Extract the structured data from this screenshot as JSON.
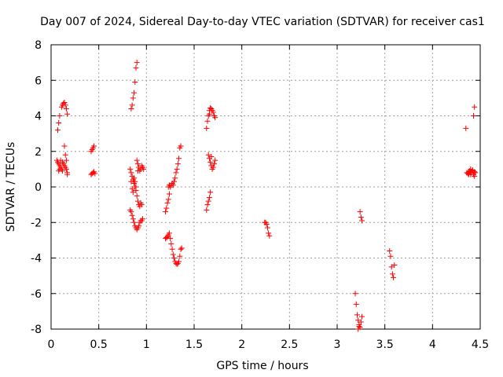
{
  "chart_data": {
    "type": "scatter",
    "title": "Day 007 of 2024, Sidereal Day-to-day VTEC variation (SDTVAR) for receiver cas1",
    "xlabel": "GPS time / hours",
    "ylabel": "SDTVAR / TECUs",
    "xlim": [
      0,
      4.5
    ],
    "ylim": [
      -8,
      8
    ],
    "xticks": [
      0,
      0.5,
      1,
      1.5,
      2,
      2.5,
      3,
      3.5,
      4,
      4.5
    ],
    "xtick_labels": [
      "0",
      "0.5",
      "1",
      "1.5",
      "2",
      "2.5",
      "3",
      "3.5",
      "4",
      "4.5"
    ],
    "yticks": [
      -8,
      -6,
      -4,
      -2,
      0,
      2,
      4,
      6,
      8
    ],
    "ytick_labels": [
      "-8",
      "-6",
      "-4",
      "-2",
      "0",
      "2",
      "4",
      "6",
      "8"
    ],
    "grid": true,
    "marker": "+",
    "color": "#ff0000",
    "series": [
      {
        "name": "SDTVAR",
        "points": [
          [
            0.07,
            3.2
          ],
          [
            0.08,
            3.6
          ],
          [
            0.09,
            4.0
          ],
          [
            0.11,
            4.5
          ],
          [
            0.12,
            4.6
          ],
          [
            0.13,
            4.7
          ],
          [
            0.14,
            4.75
          ],
          [
            0.15,
            4.6
          ],
          [
            0.16,
            4.4
          ],
          [
            0.17,
            4.1
          ],
          [
            0.06,
            1.5
          ],
          [
            0.07,
            1.4
          ],
          [
            0.08,
            1.3
          ],
          [
            0.09,
            1.2
          ],
          [
            0.1,
            1.1
          ],
          [
            0.11,
            1.0
          ],
          [
            0.12,
            0.9
          ],
          [
            0.13,
            1.3
          ],
          [
            0.14,
            1.2
          ],
          [
            0.15,
            1.1
          ],
          [
            0.16,
            1.0
          ],
          [
            0.17,
            0.8
          ],
          [
            0.08,
            0.9
          ],
          [
            0.1,
            1.5
          ],
          [
            0.12,
            1.4
          ],
          [
            0.14,
            2.3
          ],
          [
            0.15,
            1.8
          ],
          [
            0.16,
            1.5
          ],
          [
            0.17,
            0.7
          ],
          [
            0.09,
            1.0
          ],
          [
            0.42,
            2.0
          ],
          [
            0.43,
            2.1
          ],
          [
            0.44,
            2.2
          ],
          [
            0.45,
            2.3
          ],
          [
            0.42,
            0.7
          ],
          [
            0.43,
            0.75
          ],
          [
            0.44,
            0.8
          ],
          [
            0.45,
            0.85
          ],
          [
            0.46,
            0.75
          ],
          [
            0.84,
            4.4
          ],
          [
            0.85,
            4.6
          ],
          [
            0.86,
            5.0
          ],
          [
            0.87,
            5.3
          ],
          [
            0.88,
            5.9
          ],
          [
            0.89,
            6.7
          ],
          [
            0.9,
            7.0
          ],
          [
            0.83,
            1.0
          ],
          [
            0.84,
            0.8
          ],
          [
            0.85,
            0.6
          ],
          [
            0.86,
            0.4
          ],
          [
            0.87,
            0.2
          ],
          [
            0.88,
            0.0
          ],
          [
            0.89,
            -0.2
          ],
          [
            0.84,
            0.3
          ],
          [
            0.85,
            -0.1
          ],
          [
            0.86,
            -0.3
          ],
          [
            0.87,
            0.5
          ],
          [
            0.88,
            0.3
          ],
          [
            0.89,
            0.0
          ],
          [
            0.9,
            -0.5
          ],
          [
            0.91,
            -0.8
          ],
          [
            0.92,
            -1.0
          ],
          [
            0.93,
            -1.1
          ],
          [
            0.94,
            -0.9
          ],
          [
            0.95,
            -1.0
          ],
          [
            0.9,
            1.5
          ],
          [
            0.91,
            1.3
          ],
          [
            0.92,
            1.1
          ],
          [
            0.93,
            0.9
          ],
          [
            0.94,
            1.0
          ],
          [
            0.95,
            1.2
          ],
          [
            0.96,
            1.1
          ],
          [
            0.97,
            1.0
          ],
          [
            0.91,
            0.9
          ],
          [
            0.83,
            -1.3
          ],
          [
            0.84,
            -1.4
          ],
          [
            0.85,
            -1.6
          ],
          [
            0.86,
            -1.8
          ],
          [
            0.87,
            -2.0
          ],
          [
            0.88,
            -2.2
          ],
          [
            0.89,
            -2.3
          ],
          [
            0.9,
            -2.4
          ],
          [
            0.91,
            -2.3
          ],
          [
            0.92,
            -2.2
          ],
          [
            0.93,
            -2.0
          ],
          [
            0.94,
            -1.9
          ],
          [
            0.95,
            -1.9
          ],
          [
            0.96,
            -1.8
          ],
          [
            1.2,
            -1.4
          ],
          [
            1.21,
            -1.2
          ],
          [
            1.22,
            -0.9
          ],
          [
            1.23,
            -0.7
          ],
          [
            1.24,
            -0.4
          ],
          [
            1.23,
            0.0
          ],
          [
            1.24,
            0.1
          ],
          [
            1.25,
            0.0
          ],
          [
            1.26,
            0.1
          ],
          [
            1.27,
            0.2
          ],
          [
            1.28,
            0.1
          ],
          [
            1.29,
            0.3
          ],
          [
            1.3,
            0.5
          ],
          [
            1.31,
            0.8
          ],
          [
            1.32,
            1.0
          ],
          [
            1.33,
            1.3
          ],
          [
            1.34,
            1.6
          ],
          [
            1.35,
            2.2
          ],
          [
            1.36,
            2.3
          ],
          [
            1.2,
            -2.9
          ],
          [
            1.21,
            -2.85
          ],
          [
            1.22,
            -2.8
          ],
          [
            1.23,
            -2.7
          ],
          [
            1.24,
            -2.6
          ],
          [
            1.25,
            -2.9
          ],
          [
            1.26,
            -3.2
          ],
          [
            1.27,
            -3.5
          ],
          [
            1.28,
            -3.8
          ],
          [
            1.29,
            -4.0
          ],
          [
            1.3,
            -4.2
          ],
          [
            1.31,
            -4.3
          ],
          [
            1.32,
            -4.35
          ],
          [
            1.33,
            -4.3
          ],
          [
            1.34,
            -4.2
          ],
          [
            1.35,
            -3.9
          ],
          [
            1.36,
            -3.5
          ],
          [
            1.37,
            -3.45
          ],
          [
            1.63,
            3.3
          ],
          [
            1.64,
            3.7
          ],
          [
            1.65,
            4.0
          ],
          [
            1.66,
            4.3
          ],
          [
            1.67,
            4.45
          ],
          [
            1.68,
            4.4
          ],
          [
            1.69,
            4.3
          ],
          [
            1.7,
            4.2
          ],
          [
            1.71,
            4.0
          ],
          [
            1.72,
            3.9
          ],
          [
            1.66,
            4.1
          ],
          [
            1.63,
            -1.3
          ],
          [
            1.64,
            -1.0
          ],
          [
            1.65,
            -0.8
          ],
          [
            1.66,
            -0.6
          ],
          [
            1.67,
            -0.3
          ],
          [
            1.65,
            1.8
          ],
          [
            1.66,
            1.6
          ],
          [
            1.67,
            1.4
          ],
          [
            1.68,
            1.2
          ],
          [
            1.69,
            1.0
          ],
          [
            1.7,
            1.1
          ],
          [
            1.71,
            1.3
          ],
          [
            1.72,
            1.5
          ],
          [
            1.68,
            1.7
          ],
          [
            2.24,
            -2.0
          ],
          [
            2.25,
            -2.0
          ],
          [
            2.26,
            -2.1
          ],
          [
            2.27,
            -2.3
          ],
          [
            2.28,
            -2.6
          ],
          [
            2.29,
            -2.75
          ],
          [
            3.19,
            -6.0
          ],
          [
            3.2,
            -6.6
          ],
          [
            3.21,
            -7.2
          ],
          [
            3.22,
            -7.5
          ],
          [
            3.23,
            -7.75
          ],
          [
            3.24,
            -7.9
          ],
          [
            3.25,
            -7.6
          ],
          [
            3.26,
            -7.3
          ],
          [
            3.22,
            -8.0
          ],
          [
            3.23,
            -7.85
          ],
          [
            3.24,
            -1.4
          ],
          [
            3.25,
            -1.7
          ],
          [
            3.26,
            -1.9
          ],
          [
            3.55,
            -3.6
          ],
          [
            3.56,
            -3.9
          ],
          [
            3.57,
            -4.5
          ],
          [
            3.58,
            -4.9
          ],
          [
            3.59,
            -5.1
          ],
          [
            3.6,
            -4.4
          ],
          [
            4.35,
            3.3
          ],
          [
            4.43,
            4.0
          ],
          [
            4.44,
            4.5
          ],
          [
            4.36,
            0.8
          ],
          [
            4.37,
            0.75
          ],
          [
            4.38,
            0.7
          ],
          [
            4.39,
            0.9
          ],
          [
            4.4,
            1.0
          ],
          [
            4.41,
            0.8
          ],
          [
            4.42,
            0.9
          ],
          [
            4.43,
            0.7
          ],
          [
            4.44,
            0.6
          ],
          [
            4.45,
            0.8
          ],
          [
            4.38,
            0.85
          ],
          [
            4.4,
            0.7
          ],
          [
            4.42,
            0.95
          ],
          [
            4.44,
            0.85
          ]
        ]
      }
    ]
  }
}
